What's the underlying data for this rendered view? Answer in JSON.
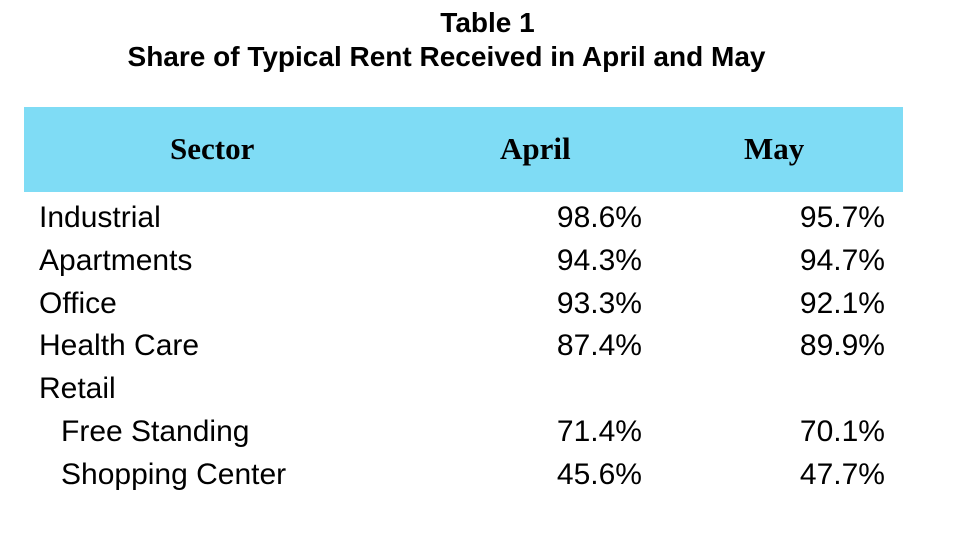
{
  "chart_data": {
    "type": "table",
    "title": "Table 1",
    "subtitle": "Share of Typical Rent Received in April and May",
    "columns": [
      "Sector",
      "April",
      "May"
    ],
    "colors": {
      "header_band": "#7fdcf5"
    },
    "rows": [
      {
        "label": "Industrial",
        "april": "98.6%",
        "may": "95.7%"
      },
      {
        "label": "Apartments",
        "april": "94.3%",
        "may": "94.7%"
      },
      {
        "label": "Office",
        "april": "93.3%",
        "may": "92.1%"
      },
      {
        "label": "Health Care",
        "april": "87.4%",
        "may": "89.9%"
      },
      {
        "label": "Retail",
        "april": "",
        "may": ""
      },
      {
        "label": "Free Standing",
        "april": "71.4%",
        "may": "70.1%",
        "indent": true
      },
      {
        "label": "Shopping Center",
        "april": "45.6%",
        "may": "47.7%",
        "indent": true
      }
    ]
  }
}
